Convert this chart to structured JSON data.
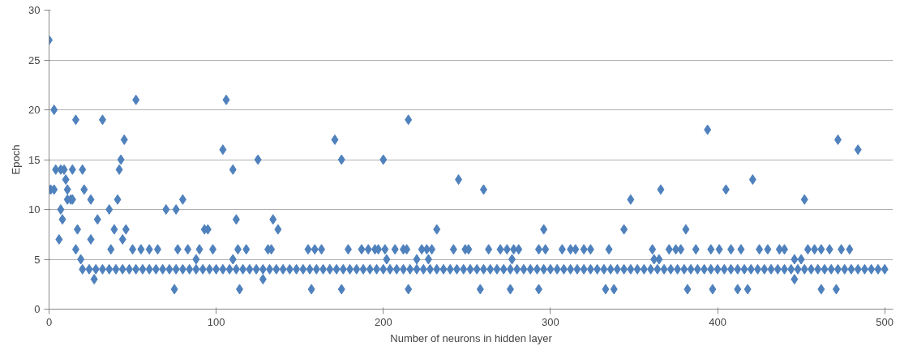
{
  "chart_data": {
    "type": "scatter",
    "xlabel": "Number of neurons in hidden layer",
    "ylabel": "Epoch",
    "marker": "diamond",
    "grid": "y",
    "xlim": [
      0,
      505
    ],
    "xticks": [
      0,
      100,
      200,
      300,
      400,
      500
    ],
    "ylim": [
      0,
      30
    ],
    "yticks": [
      0,
      5,
      10,
      15,
      20,
      25,
      30
    ],
    "series": [
      {
        "color": "#4f81bd",
        "x": [
          0,
          3,
          1,
          3,
          4,
          7,
          9,
          7,
          8,
          6,
          10,
          11,
          13,
          14,
          11,
          14,
          16,
          20,
          17,
          16,
          19,
          21,
          25,
          25,
          27,
          29,
          32,
          36,
          37,
          39,
          41,
          42,
          43,
          44,
          45,
          46,
          52,
          50,
          55,
          60,
          65,
          70,
          76,
          75,
          80,
          77,
          83,
          88,
          90,
          93,
          95,
          98,
          104,
          106,
          110,
          110,
          112,
          114,
          113,
          118,
          125,
          128,
          131,
          133,
          134,
          137,
          155,
          159,
          163,
          157,
          171,
          175,
          175,
          179,
          187,
          191,
          195,
          197,
          200,
          202,
          201,
          207,
          212,
          214,
          215,
          215,
          220,
          223,
          226,
          227,
          229,
          232,
          242,
          245,
          249,
          251,
          258,
          260,
          263,
          270,
          274,
          278,
          277,
          276,
          281,
          293,
          293,
          296,
          297,
          307,
          312,
          315,
          320,
          324,
          333,
          338,
          335,
          344,
          348,
          361,
          362,
          365,
          366,
          371,
          375,
          378,
          381,
          382,
          387,
          394,
          396,
          397,
          401,
          405,
          408,
          412,
          418,
          414,
          421,
          425,
          430,
          437,
          440,
          446,
          446,
          450,
          452,
          454,
          458,
          462,
          462,
          467,
          471,
          472,
          474,
          479,
          484,
          20,
          24,
          28,
          32,
          36,
          40,
          44,
          48,
          52,
          56,
          60,
          64,
          68,
          72,
          76,
          80,
          84,
          88,
          92,
          96,
          100,
          104,
          108,
          112,
          116,
          120,
          124,
          128,
          132,
          136,
          140,
          144,
          148,
          152,
          156,
          160,
          164,
          168,
          172,
          176,
          180,
          184,
          188,
          192,
          196,
          200,
          204,
          208,
          212,
          216,
          220,
          224,
          228,
          232,
          236,
          240,
          244,
          248,
          252,
          256,
          260,
          264,
          268,
          272,
          276,
          280,
          284,
          288,
          292,
          296,
          300,
          304,
          308,
          312,
          316,
          320,
          324,
          328,
          332,
          336,
          340,
          344,
          348,
          352,
          356,
          360,
          364,
          368,
          372,
          376,
          380,
          384,
          388,
          392,
          396,
          400,
          404,
          408,
          412,
          416,
          420,
          424,
          428,
          432,
          436,
          440,
          444,
          448,
          452,
          456,
          460,
          464,
          468,
          472,
          476,
          480,
          484,
          488,
          492,
          496,
          500
        ],
        "values": [
          27,
          20,
          12,
          12,
          14,
          14,
          14,
          10,
          9,
          7,
          13,
          11,
          11,
          11,
          12,
          14,
          19,
          14,
          8,
          6,
          5,
          12,
          11,
          7,
          3,
          9,
          19,
          10,
          6,
          8,
          11,
          14,
          15,
          7,
          17,
          8,
          21,
          6,
          6,
          6,
          6,
          10,
          10,
          2,
          11,
          6,
          6,
          5,
          6,
          8,
          8,
          6,
          16,
          21,
          14,
          5,
          9,
          2,
          6,
          6,
          15,
          3,
          6,
          6,
          9,
          8,
          6,
          6,
          6,
          2,
          17,
          15,
          2,
          6,
          6,
          6,
          6,
          6,
          15,
          5,
          6,
          6,
          6,
          6,
          19,
          2,
          5,
          6,
          6,
          5,
          6,
          8,
          6,
          13,
          6,
          6,
          2,
          12,
          6,
          6,
          6,
          6,
          5,
          2,
          6,
          2,
          6,
          8,
          6,
          6,
          6,
          6,
          6,
          6,
          2,
          2,
          6,
          8,
          11,
          6,
          5,
          5,
          12,
          6,
          6,
          6,
          8,
          2,
          6,
          18,
          6,
          2,
          6,
          12,
          6,
          2,
          2,
          6,
          13,
          6,
          6,
          6,
          6,
          3,
          5,
          5,
          11,
          6,
          6,
          6,
          2,
          6,
          2,
          17,
          6,
          6,
          16,
          4,
          4,
          4,
          4,
          4,
          4,
          4,
          4,
          4,
          4,
          4,
          4,
          4,
          4,
          4,
          4,
          4,
          4,
          4,
          4,
          4,
          4,
          4,
          4,
          4,
          4,
          4,
          4,
          4,
          4,
          4,
          4,
          4,
          4,
          4,
          4,
          4,
          4,
          4,
          4,
          4,
          4,
          4,
          4,
          4,
          4,
          4,
          4,
          4,
          4,
          4,
          4,
          4,
          4,
          4,
          4,
          4,
          4,
          4,
          4,
          4,
          4,
          4,
          4,
          4,
          4,
          4,
          4,
          4,
          4,
          4,
          4,
          4,
          4,
          4,
          4,
          4,
          4,
          4,
          4,
          4,
          4,
          4,
          4,
          4,
          4,
          4,
          4,
          4,
          4,
          4,
          4,
          4,
          4,
          4,
          4,
          4,
          4,
          4,
          4,
          4,
          4,
          4,
          4,
          4,
          4,
          4,
          4,
          4,
          4,
          4,
          4,
          4,
          4,
          4,
          4,
          4,
          4,
          4,
          4,
          4
        ]
      }
    ]
  }
}
